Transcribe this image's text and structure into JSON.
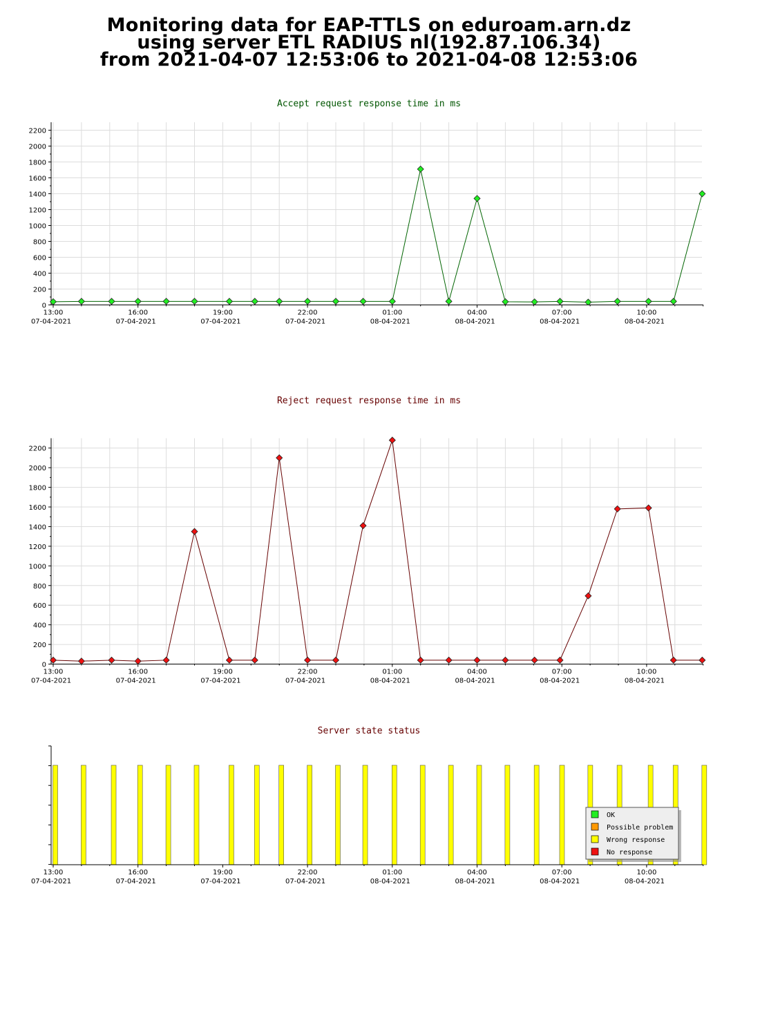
{
  "page": {
    "title_line1": "Monitoring data for EAP-TTLS on eduroam.arn.dz",
    "title_line2": "using server ETL RADIUS nl(192.87.106.34)",
    "title_line3": "from 2021-04-07 12:53:06 to 2021-04-08 12:53:06"
  },
  "chart_data": [
    {
      "type": "line",
      "title": "Accept request response time in ms",
      "xlabel": "",
      "ylabel": "",
      "ylim": [
        0,
        2300
      ],
      "yticks": [
        0,
        200,
        400,
        600,
        800,
        1000,
        1200,
        1400,
        1600,
        1800,
        2000,
        2200
      ],
      "xticks": [
        {
          "time": "13:00",
          "date": "07-04-2021"
        },
        {
          "time": "16:00",
          "date": "07-04-2021"
        },
        {
          "time": "19:00",
          "date": "07-04-2021"
        },
        {
          "time": "22:00",
          "date": "07-04-2021"
        },
        {
          "time": "01:00",
          "date": "08-04-2021"
        },
        {
          "time": "04:00",
          "date": "08-04-2021"
        },
        {
          "time": "07:00",
          "date": "08-04-2021"
        },
        {
          "time": "10:00",
          "date": "08-04-2021"
        }
      ],
      "line_color": "#006400",
      "marker_color": "#22ee22",
      "grid": true,
      "series": [
        {
          "x": [
            "2021-04-07 13:00",
            "2021-04-07 14:00",
            "2021-04-07 15:04",
            "2021-04-07 16:00",
            "2021-04-07 17:00",
            "2021-04-07 18:00",
            "2021-04-07 19:14",
            "2021-04-07 20:08",
            "2021-04-07 21:00",
            "2021-04-07 22:00",
            "2021-04-07 23:00",
            "2021-04-07 23:58",
            "2021-04-08 01:00",
            "2021-04-08 02:00",
            "2021-04-08 03:00",
            "2021-04-08 04:00",
            "2021-04-08 05:00",
            "2021-04-08 06:02",
            "2021-04-08 06:56",
            "2021-04-08 07:56",
            "2021-04-08 08:58",
            "2021-04-08 10:04",
            "2021-04-08 10:57",
            "2021-04-08 11:58"
          ],
          "values": [
            40,
            45,
            45,
            45,
            45,
            45,
            45,
            45,
            45,
            45,
            45,
            45,
            45,
            1710,
            45,
            1340,
            40,
            38,
            45,
            35,
            45,
            45,
            45,
            1400
          ]
        }
      ]
    },
    {
      "type": "line",
      "title": "Reject request response time in ms",
      "xlabel": "",
      "ylabel": "",
      "ylim": [
        0,
        2300
      ],
      "yticks": [
        0,
        200,
        400,
        600,
        800,
        1000,
        1200,
        1400,
        1600,
        1800,
        2000,
        2200
      ],
      "xticks": [
        {
          "time": "13:00",
          "date": "07-04-2021"
        },
        {
          "time": "16:00",
          "date": "07-04-2021"
        },
        {
          "time": "19:00",
          "date": "07-04-2021"
        },
        {
          "time": "22:00",
          "date": "07-04-2021"
        },
        {
          "time": "01:00",
          "date": "08-04-2021"
        },
        {
          "time": "04:00",
          "date": "08-04-2021"
        },
        {
          "time": "07:00",
          "date": "08-04-2021"
        },
        {
          "time": "10:00",
          "date": "08-04-2021"
        }
      ],
      "line_color": "#660000",
      "marker_color": "#ee1111",
      "grid": true,
      "series": [
        {
          "x": [
            "2021-04-07 13:00",
            "2021-04-07 14:00",
            "2021-04-07 15:04",
            "2021-04-07 16:00",
            "2021-04-07 17:00",
            "2021-04-07 18:00",
            "2021-04-07 19:14",
            "2021-04-07 20:08",
            "2021-04-07 21:00",
            "2021-04-07 22:00",
            "2021-04-07 23:00",
            "2021-04-07 23:58",
            "2021-04-08 01:00",
            "2021-04-08 02:00",
            "2021-04-08 03:00",
            "2021-04-08 04:00",
            "2021-04-08 05:00",
            "2021-04-08 06:02",
            "2021-04-08 06:56",
            "2021-04-08 07:56",
            "2021-04-08 08:58",
            "2021-04-08 10:04",
            "2021-04-08 10:57",
            "2021-04-08 11:58"
          ],
          "values": [
            40,
            30,
            40,
            30,
            40,
            1350,
            40,
            40,
            2100,
            40,
            40,
            1410,
            2280,
            40,
            40,
            40,
            40,
            40,
            40,
            695,
            1580,
            1590,
            40,
            40
          ]
        }
      ]
    },
    {
      "type": "bar",
      "title": "Server state status",
      "legend": [
        "OK",
        "Possible problem",
        "Wrong response",
        "No response"
      ],
      "legend_colors": [
        "#22ee22",
        "#ff9900",
        "#ffff00",
        "#ee1111"
      ],
      "legend_position": "bottom-right",
      "xticks": [
        {
          "time": "13:00",
          "date": "07-04-2021"
        },
        {
          "time": "16:00",
          "date": "07-04-2021"
        },
        {
          "time": "19:00",
          "date": "07-04-2021"
        },
        {
          "time": "22:00",
          "date": "07-04-2021"
        },
        {
          "time": "01:00",
          "date": "08-04-2021"
        },
        {
          "time": "04:00",
          "date": "08-04-2021"
        },
        {
          "time": "07:00",
          "date": "08-04-2021"
        },
        {
          "time": "10:00",
          "date": "08-04-2021"
        }
      ],
      "bars": [
        {
          "time": "2021-04-07 13:00",
          "state": "Wrong response"
        },
        {
          "time": "2021-04-07 14:00",
          "state": "Wrong response"
        },
        {
          "time": "2021-04-07 15:04",
          "state": "Wrong response"
        },
        {
          "time": "2021-04-07 16:00",
          "state": "Wrong response"
        },
        {
          "time": "2021-04-07 17:00",
          "state": "Wrong response"
        },
        {
          "time": "2021-04-07 18:00",
          "state": "Wrong response"
        },
        {
          "time": "2021-04-07 19:14",
          "state": "Wrong response"
        },
        {
          "time": "2021-04-07 20:08",
          "state": "Wrong response"
        },
        {
          "time": "2021-04-07 21:00",
          "state": "Wrong response"
        },
        {
          "time": "2021-04-07 22:00",
          "state": "Wrong response"
        },
        {
          "time": "2021-04-07 23:00",
          "state": "Wrong response"
        },
        {
          "time": "2021-04-07 23:58",
          "state": "Wrong response"
        },
        {
          "time": "2021-04-08 01:00",
          "state": "Wrong response"
        },
        {
          "time": "2021-04-08 02:00",
          "state": "Wrong response"
        },
        {
          "time": "2021-04-08 03:00",
          "state": "Wrong response"
        },
        {
          "time": "2021-04-08 04:00",
          "state": "Wrong response"
        },
        {
          "time": "2021-04-08 05:00",
          "state": "Wrong response"
        },
        {
          "time": "2021-04-08 06:02",
          "state": "Wrong response"
        },
        {
          "time": "2021-04-08 06:56",
          "state": "Wrong response"
        },
        {
          "time": "2021-04-08 07:56",
          "state": "Wrong response"
        },
        {
          "time": "2021-04-08 08:58",
          "state": "Wrong response"
        },
        {
          "time": "2021-04-08 10:04",
          "state": "Wrong response"
        },
        {
          "time": "2021-04-08 10:57",
          "state": "Wrong response"
        },
        {
          "time": "2021-04-08 11:58",
          "state": "Wrong response"
        }
      ]
    }
  ]
}
